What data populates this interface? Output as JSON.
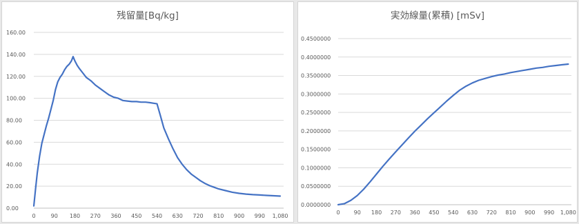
{
  "chart_data": [
    {
      "type": "line",
      "title": "残留量[Bq/kg]",
      "xlabel": "",
      "ylabel": "",
      "xlim": [
        0,
        1095
      ],
      "ylim": [
        0,
        160
      ],
      "xticks": [
        "0",
        "90",
        "180",
        "270",
        "360",
        "450",
        "540",
        "630",
        "720",
        "810",
        "900",
        "990",
        "1,080"
      ],
      "yticks": [
        "0.00",
        "20.00",
        "40.00",
        "60.00",
        "80.00",
        "100.00",
        "120.00",
        "140.00",
        "160.00"
      ],
      "grid": true,
      "color": "#4472c4",
      "series": [
        {
          "x": [
            0,
            8,
            15,
            25,
            35,
            45,
            55,
            65,
            75,
            85,
            95,
            105,
            115,
            125,
            135,
            145,
            155,
            165,
            172,
            180,
            190,
            200,
            215,
            230,
            250,
            270,
            290,
            310,
            330,
            350,
            370,
            390,
            410,
            430,
            450,
            470,
            490,
            510,
            525,
            540,
            555,
            570,
            590,
            610,
            630,
            650,
            670,
            690,
            710,
            730,
            750,
            770,
            790,
            810,
            840,
            870,
            900,
            930,
            960,
            990,
            1020,
            1050,
            1080
          ],
          "y": [
            2,
            18,
            32,
            47,
            59,
            67,
            75,
            82,
            90,
            98,
            108,
            115,
            119,
            122,
            126,
            129,
            131,
            134,
            138,
            134,
            130,
            127,
            123,
            119,
            116,
            112,
            109,
            106,
            103,
            101,
            100,
            98,
            97.5,
            97,
            97,
            96.5,
            96.5,
            96,
            95.5,
            95,
            84,
            73,
            63,
            54,
            46,
            40,
            35,
            31,
            28,
            25,
            22.5,
            20.5,
            19,
            17.5,
            16,
            14.5,
            13.5,
            12.8,
            12.3,
            12,
            11.6,
            11.3,
            11
          ]
        }
      ]
    },
    {
      "type": "line",
      "title": "実効線量(累積) [mSv]",
      "xlabel": "",
      "ylabel": "",
      "xlim": [
        0,
        1095
      ],
      "ylim": [
        0,
        0.45
      ],
      "xticks": [
        "0",
        "90",
        "180",
        "270",
        "360",
        "450",
        "540",
        "630",
        "720",
        "810",
        "900",
        "990",
        "1,080"
      ],
      "yticks": [
        "0.0000000",
        "0.0500000",
        "0.1000000",
        "0.1500000",
        "0.2000000",
        "0.2500000",
        "0.3000000",
        "0.3500000",
        "0.4000000",
        "0.4500000"
      ],
      "grid": true,
      "color": "#4472c4",
      "series": [
        {
          "x": [
            0,
            30,
            60,
            90,
            120,
            150,
            180,
            210,
            240,
            270,
            300,
            330,
            360,
            390,
            420,
            450,
            480,
            510,
            540,
            570,
            600,
            630,
            660,
            690,
            720,
            750,
            780,
            810,
            840,
            870,
            900,
            930,
            960,
            990,
            1020,
            1050,
            1080
          ],
          "y": [
            0,
            0.003,
            0.012,
            0.025,
            0.042,
            0.062,
            0.083,
            0.104,
            0.124,
            0.143,
            0.162,
            0.181,
            0.199,
            0.216,
            0.233,
            0.249,
            0.265,
            0.281,
            0.296,
            0.31,
            0.321,
            0.33,
            0.337,
            0.342,
            0.347,
            0.351,
            0.354,
            0.358,
            0.361,
            0.364,
            0.367,
            0.37,
            0.372,
            0.375,
            0.377,
            0.379,
            0.381
          ]
        }
      ]
    }
  ]
}
